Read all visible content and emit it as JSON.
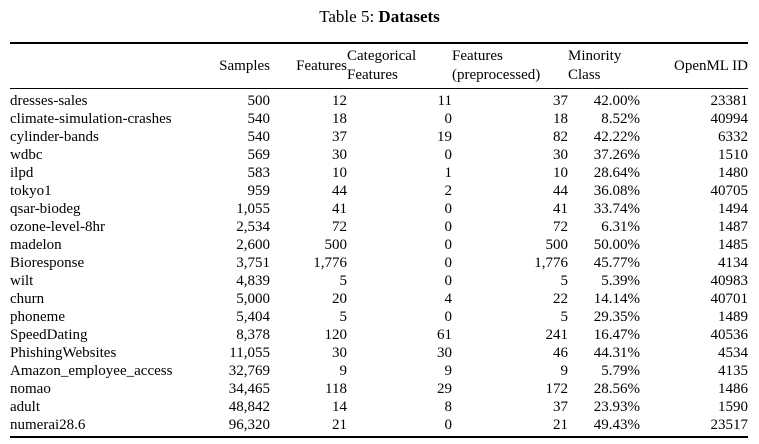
{
  "caption": {
    "prefix": "Table 5:",
    "title": "Datasets"
  },
  "table": {
    "columns": [
      {
        "id": "dataset",
        "label": ""
      },
      {
        "id": "samples",
        "label": "Samples"
      },
      {
        "id": "features",
        "label": "Features"
      },
      {
        "id": "categorical-features",
        "label": "Categorical\nFeatures"
      },
      {
        "id": "features-preprocessed",
        "label": "Features\n(preprocessed)"
      },
      {
        "id": "minority-class",
        "label": "Minority\nClass"
      },
      {
        "id": "openml-id",
        "label": "OpenML ID"
      }
    ],
    "rows": [
      [
        "dresses-sales",
        "500",
        "12",
        "11",
        "37",
        "42.00%",
        "23381"
      ],
      [
        "climate-simulation-crashes",
        "540",
        "18",
        "0",
        "18",
        "8.52%",
        "40994"
      ],
      [
        "cylinder-bands",
        "540",
        "37",
        "19",
        "82",
        "42.22%",
        "6332"
      ],
      [
        "wdbc",
        "569",
        "30",
        "0",
        "30",
        "37.26%",
        "1510"
      ],
      [
        "ilpd",
        "583",
        "10",
        "1",
        "10",
        "28.64%",
        "1480"
      ],
      [
        "tokyo1",
        "959",
        "44",
        "2",
        "44",
        "36.08%",
        "40705"
      ],
      [
        "qsar-biodeg",
        "1,055",
        "41",
        "0",
        "41",
        "33.74%",
        "1494"
      ],
      [
        "ozone-level-8hr",
        "2,534",
        "72",
        "0",
        "72",
        "6.31%",
        "1487"
      ],
      [
        "madelon",
        "2,600",
        "500",
        "0",
        "500",
        "50.00%",
        "1485"
      ],
      [
        "Bioresponse",
        "3,751",
        "1,776",
        "0",
        "1,776",
        "45.77%",
        "4134"
      ],
      [
        "wilt",
        "4,839",
        "5",
        "0",
        "5",
        "5.39%",
        "40983"
      ],
      [
        "churn",
        "5,000",
        "20",
        "4",
        "22",
        "14.14%",
        "40701"
      ],
      [
        "phoneme",
        "5,404",
        "5",
        "0",
        "5",
        "29.35%",
        "1489"
      ],
      [
        "SpeedDating",
        "8,378",
        "120",
        "61",
        "241",
        "16.47%",
        "40536"
      ],
      [
        "PhishingWebsites",
        "11,055",
        "30",
        "30",
        "46",
        "44.31%",
        "4534"
      ],
      [
        "Amazon_employee_access",
        "32,769",
        "9",
        "9",
        "9",
        "5.79%",
        "4135"
      ],
      [
        "nomao",
        "34,465",
        "118",
        "29",
        "172",
        "28.56%",
        "1486"
      ],
      [
        "adult",
        "48,842",
        "14",
        "8",
        "37",
        "23.93%",
        "1590"
      ],
      [
        "numerai28.6",
        "96,320",
        "21",
        "0",
        "21",
        "49.43%",
        "23517"
      ]
    ]
  },
  "colors": {
    "text": "#000000",
    "background": "#ffffff",
    "rule": "#000000"
  }
}
